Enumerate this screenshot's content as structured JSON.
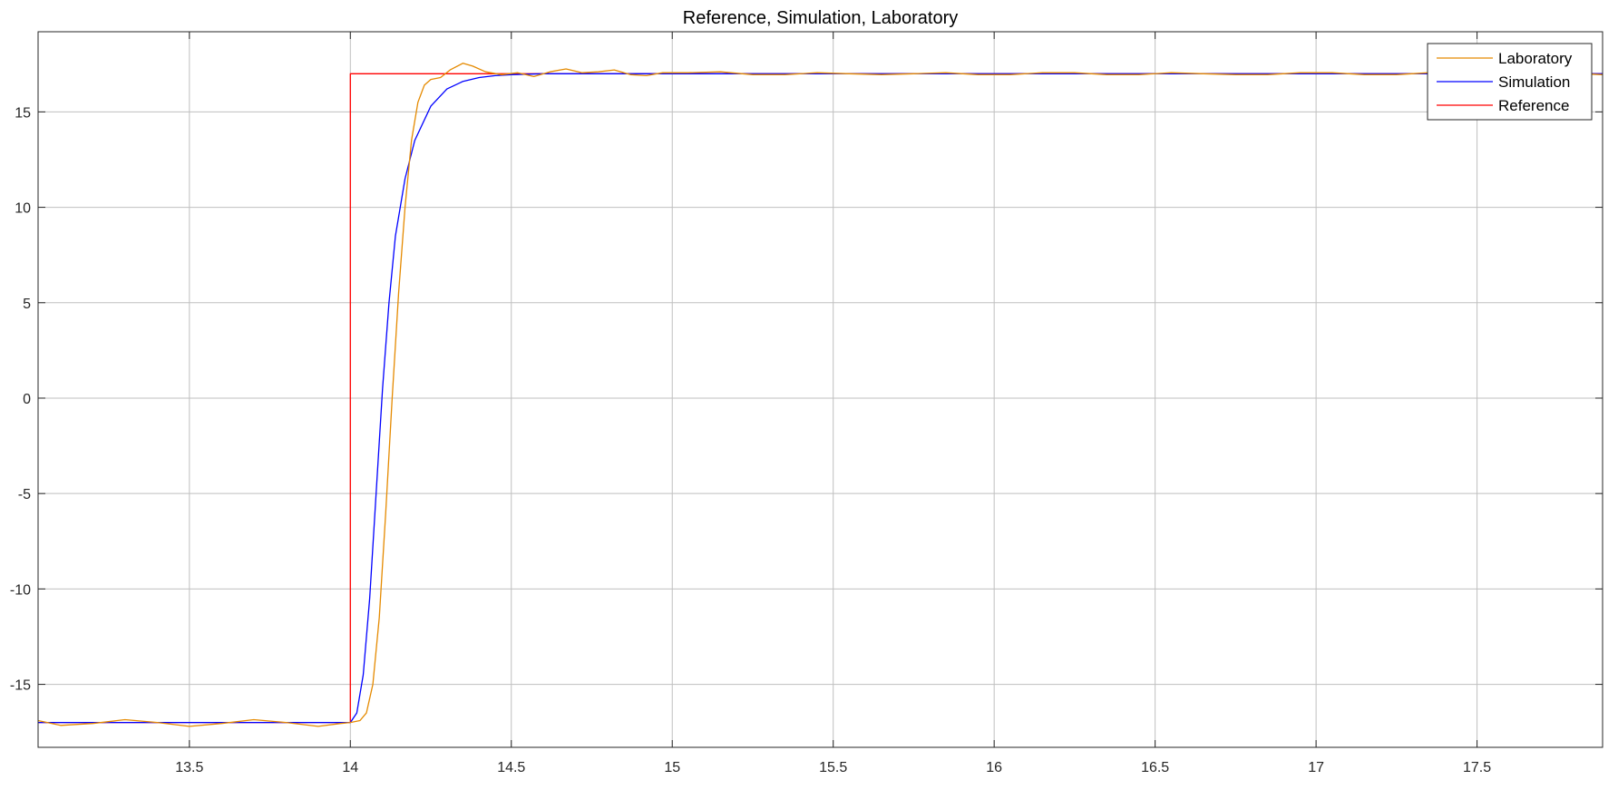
{
  "chart_data": {
    "type": "line",
    "title": "Reference, Simulation, Laboratory",
    "xlabel": "",
    "ylabel": "",
    "xlim": [
      13.03,
      17.89
    ],
    "ylim": [
      -18.3,
      19.2
    ],
    "xticks": [
      13.5,
      14,
      14.5,
      15,
      15.5,
      16,
      16.5,
      17,
      17.5
    ],
    "yticks": [
      -15,
      -10,
      -5,
      0,
      5,
      10,
      15
    ],
    "grid": true,
    "legend_position": "top-right",
    "series": [
      {
        "name": "Laboratory",
        "color": "#e58a00",
        "points": [
          [
            13.03,
            -16.9
          ],
          [
            13.1,
            -17.15
          ],
          [
            13.2,
            -17.05
          ],
          [
            13.3,
            -16.85
          ],
          [
            13.4,
            -17.0
          ],
          [
            13.5,
            -17.2
          ],
          [
            13.6,
            -17.05
          ],
          [
            13.7,
            -16.85
          ],
          [
            13.8,
            -17.0
          ],
          [
            13.9,
            -17.2
          ],
          [
            13.97,
            -17.05
          ],
          [
            14.0,
            -17.0
          ],
          [
            14.03,
            -16.9
          ],
          [
            14.05,
            -16.5
          ],
          [
            14.07,
            -15.0
          ],
          [
            14.09,
            -11.5
          ],
          [
            14.11,
            -6.0
          ],
          [
            14.13,
            0.0
          ],
          [
            14.15,
            5.5
          ],
          [
            14.17,
            10.0
          ],
          [
            14.19,
            13.5
          ],
          [
            14.21,
            15.5
          ],
          [
            14.23,
            16.4
          ],
          [
            14.25,
            16.7
          ],
          [
            14.28,
            16.8
          ],
          [
            14.31,
            17.2
          ],
          [
            14.35,
            17.55
          ],
          [
            14.38,
            17.4
          ],
          [
            14.42,
            17.1
          ],
          [
            14.47,
            16.95
          ],
          [
            14.52,
            17.05
          ],
          [
            14.57,
            16.85
          ],
          [
            14.62,
            17.1
          ],
          [
            14.67,
            17.25
          ],
          [
            14.72,
            17.05
          ],
          [
            14.77,
            17.1
          ],
          [
            14.82,
            17.2
          ],
          [
            14.87,
            16.95
          ],
          [
            14.92,
            16.9
          ],
          [
            14.97,
            17.05
          ],
          [
            15.05,
            17.05
          ],
          [
            15.15,
            17.1
          ],
          [
            15.25,
            16.95
          ],
          [
            15.35,
            16.95
          ],
          [
            15.45,
            17.05
          ],
          [
            15.55,
            17.0
          ],
          [
            15.65,
            16.95
          ],
          [
            15.75,
            17.0
          ],
          [
            15.85,
            17.05
          ],
          [
            15.95,
            16.95
          ],
          [
            16.05,
            16.95
          ],
          [
            16.15,
            17.05
          ],
          [
            16.25,
            17.05
          ],
          [
            16.35,
            16.95
          ],
          [
            16.45,
            16.95
          ],
          [
            16.55,
            17.05
          ],
          [
            16.65,
            17.0
          ],
          [
            16.75,
            16.95
          ],
          [
            16.85,
            16.95
          ],
          [
            16.95,
            17.05
          ],
          [
            17.05,
            17.05
          ],
          [
            17.15,
            16.95
          ],
          [
            17.25,
            16.95
          ],
          [
            17.35,
            17.05
          ],
          [
            17.45,
            17.05
          ],
          [
            17.55,
            16.98
          ],
          [
            17.65,
            16.95
          ],
          [
            17.75,
            17.05
          ],
          [
            17.89,
            16.95
          ]
        ]
      },
      {
        "name": "Simulation",
        "color": "#0000ff",
        "points": [
          [
            13.03,
            -17.0
          ],
          [
            14.0,
            -17.0
          ],
          [
            14.02,
            -16.5
          ],
          [
            14.04,
            -14.5
          ],
          [
            14.06,
            -10.5
          ],
          [
            14.08,
            -5.0
          ],
          [
            14.1,
            0.5
          ],
          [
            14.12,
            5.0
          ],
          [
            14.14,
            8.5
          ],
          [
            14.17,
            11.5
          ],
          [
            14.2,
            13.5
          ],
          [
            14.25,
            15.3
          ],
          [
            14.3,
            16.2
          ],
          [
            14.35,
            16.6
          ],
          [
            14.4,
            16.8
          ],
          [
            14.45,
            16.9
          ],
          [
            14.5,
            16.95
          ],
          [
            14.6,
            17.0
          ],
          [
            17.89,
            17.0
          ]
        ]
      },
      {
        "name": "Reference",
        "color": "#ff0000",
        "points": [
          [
            13.03,
            -17.0
          ],
          [
            14.0,
            -17.0
          ],
          [
            14.0,
            17.0
          ],
          [
            17.89,
            17.0
          ]
        ]
      }
    ]
  }
}
